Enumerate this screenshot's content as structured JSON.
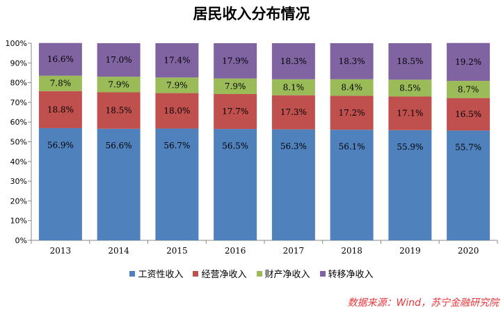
{
  "chart_data": {
    "type": "bar",
    "stacked": true,
    "title": "居民收入分布情况",
    "categories": [
      "2013",
      "2014",
      "2015",
      "2016",
      "2017",
      "2018",
      "2019",
      "2020"
    ],
    "series": [
      {
        "name": "工资性收入",
        "color": "#4f81bd",
        "values": [
          56.9,
          56.6,
          56.7,
          56.5,
          56.3,
          56.1,
          55.9,
          55.7
        ],
        "labels": [
          "56.9%",
          "56.6%",
          "56.7%",
          "56.5%",
          "56.3%",
          "56.1%",
          "55.9%",
          "55.7%"
        ]
      },
      {
        "name": "经营净收入",
        "color": "#c0504d",
        "values": [
          18.8,
          18.5,
          18.0,
          17.7,
          17.3,
          17.2,
          17.1,
          16.5
        ],
        "labels": [
          "18.8%",
          "18.5%",
          "18.0%",
          "17.7%",
          "17.3%",
          "17.2%",
          "17.1%",
          "16.5%"
        ]
      },
      {
        "name": "财产净收入",
        "color": "#9bbb59",
        "values": [
          7.8,
          7.9,
          7.9,
          7.9,
          8.1,
          8.4,
          8.5,
          8.7
        ],
        "labels": [
          "7.8%",
          "7.9%",
          "7.9%",
          "7.9%",
          "8.1%",
          "8.4%",
          "8.5%",
          "8.7%"
        ]
      },
      {
        "name": "转移净收入",
        "color": "#8064a2",
        "values": [
          16.6,
          17.0,
          17.4,
          17.9,
          18.3,
          18.3,
          18.5,
          19.2
        ],
        "labels": [
          "16.6%",
          "17.0%",
          "17.4%",
          "17.9%",
          "18.3%",
          "18.3%",
          "18.5%",
          "19.2%"
        ]
      }
    ],
    "ylim": [
      0,
      100
    ],
    "yticks": [
      "0%",
      "10%",
      "20%",
      "30%",
      "40%",
      "50%",
      "60%",
      "70%",
      "80%",
      "90%",
      "100%"
    ],
    "xlabel": "",
    "ylabel": "",
    "grid": false,
    "legend_position": "bottom"
  },
  "source_note": "数据来源：Wind，苏宁金融研究院"
}
